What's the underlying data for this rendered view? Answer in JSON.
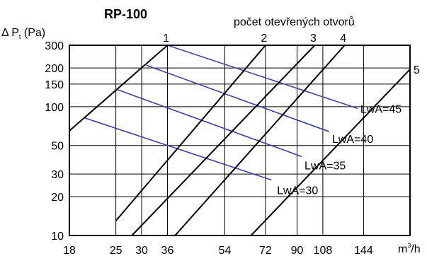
{
  "chart_data": {
    "type": "line",
    "title": "RP-100",
    "subtitle": "počet otevřených otvorů",
    "ylabel": {
      "prefix": "Δ P",
      "sub": "t",
      "suffix": " (Pa)"
    },
    "xlabel": {
      "prefix": "m",
      "sup": "3",
      "suffix": "/h"
    },
    "xscale": "log",
    "yscale": "log",
    "xlim": [
      18,
      200
    ],
    "ylim": [
      10,
      300
    ],
    "grid": true,
    "x_ticks": [
      {
        "value": 18,
        "label": "18"
      },
      {
        "value": 25,
        "label": "25"
      },
      {
        "value": 30,
        "label": "30"
      },
      {
        "value": 36,
        "label": "36"
      },
      {
        "value": 54,
        "label": "54"
      },
      {
        "value": 72,
        "label": "72"
      },
      {
        "value": 90,
        "label": "90"
      },
      {
        "value": 108,
        "label": "108"
      },
      {
        "value": 144,
        "label": "144"
      }
    ],
    "x_grid": [
      18,
      25,
      30,
      36,
      54,
      72,
      90,
      108,
      144,
      200
    ],
    "y_ticks": [
      {
        "value": 10,
        "label": "10"
      },
      {
        "value": 20,
        "label": "20"
      },
      {
        "value": 30,
        "label": "30"
      },
      {
        "value": 50,
        "label": "50"
      },
      {
        "value": 100,
        "label": "100"
      },
      {
        "value": 150,
        "label": "150"
      },
      {
        "value": 200,
        "label": "200"
      },
      {
        "value": 300,
        "label": "300"
      }
    ],
    "series": [
      {
        "name": "1",
        "points": [
          [
            18,
            65
          ],
          [
            36,
            300
          ]
        ]
      },
      {
        "name": "2",
        "points": [
          [
            25,
            13
          ],
          [
            72,
            300
          ]
        ]
      },
      {
        "name": "3",
        "points": [
          [
            28,
            10
          ],
          [
            102,
            300
          ]
        ]
      },
      {
        "name": "4",
        "points": [
          [
            38,
            10
          ],
          [
            126,
            300
          ]
        ]
      },
      {
        "name": "5",
        "points": [
          [
            65,
            10
          ],
          [
            200,
            195
          ]
        ]
      }
    ],
    "isolines": [
      {
        "name": "LwA=45",
        "color": "#3f3faa",
        "points": [
          [
            36,
            300
          ],
          [
            138,
            97
          ]
        ]
      },
      {
        "name": "LwA=40",
        "color": "#3f3faa",
        "points": [
          [
            31,
            210
          ],
          [
            113,
            64
          ]
        ]
      },
      {
        "name": "LwA=35",
        "color": "#3f3faa",
        "points": [
          [
            25,
            137
          ],
          [
            93,
            41
          ]
        ]
      },
      {
        "name": "LwA=30",
        "color": "#3f3faa",
        "points": [
          [
            20,
            82
          ],
          [
            75,
            27
          ]
        ]
      }
    ]
  }
}
